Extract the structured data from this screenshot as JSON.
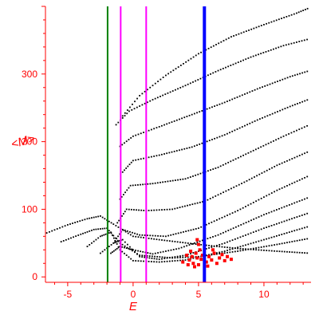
{
  "chart_data": {
    "type": "scatter",
    "title": "",
    "xlabel": "E",
    "ylabel": "<M>",
    "xlim": [
      -6.7,
      13.6
    ],
    "ylim": [
      -8,
      400
    ],
    "grid": false,
    "x_ticks": [
      -5,
      0,
      5,
      10
    ],
    "y_ticks": [
      0,
      100,
      200,
      300
    ],
    "colors": {
      "axes": "#ff0000",
      "points": "#000000",
      "highlight_points": "#ff0000",
      "green_line": "#008000",
      "magenta_lines": "#ff00ff",
      "blue_line": "#0000ff"
    },
    "vertical_lines": [
      {
        "x": -1.95,
        "color": "#008000"
      },
      {
        "x": -0.95,
        "color": "#ff00ff"
      },
      {
        "x": 1.0,
        "color": "#ff00ff"
      },
      {
        "x": 5.45,
        "color": "#0000ff"
      }
    ],
    "curves": [
      {
        "x": [
          -6.6,
          -5,
          -3.5,
          -2.5,
          -1.5,
          0,
          2,
          5,
          8,
          11,
          13.5
        ],
        "y": [
          65,
          77,
          86,
          90,
          78,
          60,
          55,
          48,
          42,
          38,
          35
        ]
      },
      {
        "x": [
          -5.5,
          -4,
          -3,
          -2,
          -1,
          0.5,
          3,
          5,
          8,
          11,
          13.5
        ],
        "y": [
          52,
          63,
          70,
          72,
          50,
          32,
          28,
          30,
          38,
          48,
          57
        ]
      },
      {
        "x": [
          -3.5,
          -2.5,
          -1.7,
          -1,
          0,
          2,
          4,
          7,
          10,
          13.5
        ],
        "y": [
          45,
          60,
          66,
          40,
          24,
          22,
          25,
          38,
          55,
          75
        ]
      },
      {
        "x": [
          -2.5,
          -1.5,
          -0.8,
          0.5,
          2,
          4,
          7,
          10,
          13.5
        ],
        "y": [
          35,
          50,
          55,
          30,
          26,
          32,
          50,
          72,
          95
        ]
      },
      {
        "x": [
          -1.7,
          -1.0,
          0,
          1.5,
          3.5,
          6.5,
          10,
          13.5
        ],
        "y": [
          35,
          45,
          40,
          34,
          42,
          62,
          92,
          118
        ]
      },
      {
        "x": [
          -1.5,
          -0.8,
          0.5,
          2.5,
          5,
          8,
          11,
          13.5
        ],
        "y": [
          50,
          70,
          62,
          60,
          72,
          98,
          128,
          150
        ]
      },
      {
        "x": [
          -1.2,
          -0.5,
          1,
          3,
          5.5,
          8.5,
          11,
          13.5
        ],
        "y": [
          80,
          100,
          98,
          100,
          112,
          140,
          165,
          186
        ]
      },
      {
        "x": [
          -1.0,
          -0.2,
          1.5,
          4,
          6.5,
          9,
          11.5,
          13.5
        ],
        "y": [
          115,
          135,
          138,
          145,
          162,
          185,
          208,
          225
        ]
      },
      {
        "x": [
          -0.8,
          0,
          2,
          4.5,
          7,
          9.5,
          12,
          13.5
        ],
        "y": [
          155,
          172,
          180,
          192,
          210,
          232,
          252,
          263
        ]
      },
      {
        "x": [
          -1.0,
          0,
          2,
          4.5,
          7,
          9.5,
          12,
          13.5
        ],
        "y": [
          193,
          208,
          222,
          240,
          258,
          278,
          296,
          305
        ]
      },
      {
        "x": [
          -1.3,
          -0.3,
          1.5,
          4,
          6.5,
          9,
          11.5,
          13.5
        ],
        "y": [
          225,
          245,
          262,
          283,
          305,
          325,
          342,
          352
        ]
      },
      {
        "x": [
          -0.8,
          0.5,
          2.5,
          5,
          7.5,
          10,
          12.5,
          13.5
        ],
        "y": [
          238,
          268,
          298,
          330,
          355,
          373,
          390,
          398
        ]
      }
    ],
    "highlight_cluster": [
      {
        "x": 4.3,
        "y": 25
      },
      {
        "x": 4.5,
        "y": 30
      },
      {
        "x": 4.6,
        "y": 20
      },
      {
        "x": 4.8,
        "y": 35
      },
      {
        "x": 4.9,
        "y": 28
      },
      {
        "x": 5.0,
        "y": 18
      },
      {
        "x": 5.1,
        "y": 40
      },
      {
        "x": 5.2,
        "y": 26
      },
      {
        "x": 5.3,
        "y": 32
      },
      {
        "x": 4.4,
        "y": 38
      },
      {
        "x": 4.7,
        "y": 15
      },
      {
        "x": 5.0,
        "y": 48
      },
      {
        "x": 4.9,
        "y": 55
      },
      {
        "x": 5.6,
        "y": 22
      },
      {
        "x": 5.8,
        "y": 30
      },
      {
        "x": 6.0,
        "y": 25
      },
      {
        "x": 6.2,
        "y": 35
      },
      {
        "x": 6.4,
        "y": 20
      },
      {
        "x": 6.6,
        "y": 28
      },
      {
        "x": 6.8,
        "y": 33
      },
      {
        "x": 7.0,
        "y": 24
      },
      {
        "x": 7.2,
        "y": 30
      },
      {
        "x": 6.1,
        "y": 40
      },
      {
        "x": 5.7,
        "y": 16
      },
      {
        "x": 7.5,
        "y": 26
      },
      {
        "x": 3.8,
        "y": 22
      },
      {
        "x": 4.1,
        "y": 32
      },
      {
        "x": 4.2,
        "y": 18
      }
    ]
  }
}
